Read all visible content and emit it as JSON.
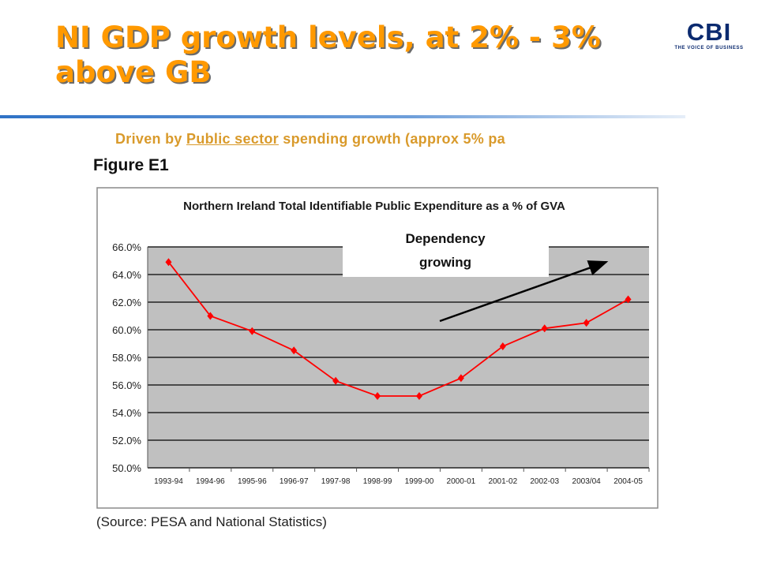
{
  "slide": {
    "title": "NI GDP growth levels, at 2% - 3% above GB",
    "subtitle_pre": "Driven by ",
    "subtitle_link": "Public sector",
    "subtitle_post": " spending growth (approx 5% pa",
    "figure_label": "Figure E1",
    "source": "(Source: PESA and National Statistics)"
  },
  "logo": {
    "letters": "CBI",
    "tagline": "THE VOICE OF BUSINESS",
    "color": "#0b2a6f"
  },
  "colors": {
    "title": "#ff9900",
    "subtitle": "#d99a2b",
    "rule": "#2f72c6",
    "series": "#ff0000",
    "plot_bg": "#c0c0c0"
  },
  "chart_data": {
    "type": "line",
    "title": "Northern Ireland Total Identifiable Public Expenditure as a % of GVA",
    "xlabel": "",
    "ylabel": "",
    "categories": [
      "1993-94",
      "1994-96",
      "1995-96",
      "1996-97",
      "1997-98",
      "1998-99",
      "1999-00",
      "2000-01",
      "2001-02",
      "2002-03",
      "2003/04",
      "2004-05"
    ],
    "series": [
      {
        "values": [
          64.9,
          61.0,
          59.9,
          58.5,
          56.3,
          55.2,
          55.2,
          56.5,
          58.8,
          60.1,
          60.5,
          62.2
        ]
      }
    ],
    "ylim": [
      50,
      66
    ],
    "yticks": [
      50,
      52,
      54,
      56,
      58,
      60,
      62,
      64,
      66
    ],
    "ytick_labels": [
      "50.0%",
      "52.0%",
      "54.0%",
      "56.0%",
      "58.0%",
      "60.0%",
      "62.0%",
      "64.0%",
      "66.0%"
    ],
    "grid": true,
    "annotation": {
      "text_line1": "Dependency",
      "text_line2": "growing"
    }
  }
}
